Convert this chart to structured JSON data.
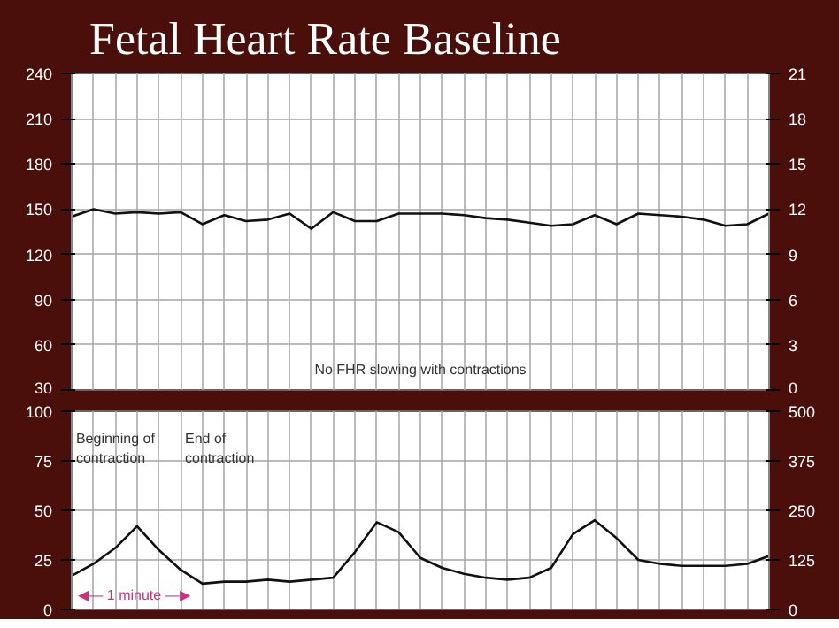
{
  "chart_data": [
    {
      "type": "line",
      "title": "Fetal Heart Rate Baseline",
      "categories": [
        null,
        null,
        null,
        null,
        null,
        null,
        null,
        null,
        null,
        null,
        null,
        null,
        null,
        null,
        null,
        null,
        null,
        null,
        null,
        null,
        null,
        null,
        null,
        null,
        null,
        null,
        null,
        null,
        null,
        null,
        null,
        null,
        null
      ],
      "series": [
        {
          "color": "#111111",
          "values": [
            145,
            150,
            147,
            148,
            147,
            148,
            140,
            146,
            142,
            143,
            147,
            137,
            148,
            142,
            142,
            147,
            147,
            147,
            146,
            144,
            143,
            141,
            139,
            140,
            146,
            140,
            147,
            146,
            145,
            143,
            139,
            140,
            147
          ]
        }
      ],
      "ylim": [
        30,
        240
      ],
      "yticks": [
        30,
        60,
        90,
        120,
        150,
        180,
        210,
        240
      ],
      "y2lim": [
        0,
        21
      ],
      "y2ticks": [
        0,
        3,
        6,
        9,
        12,
        15,
        18,
        21
      ],
      "grid": true,
      "annotations": [
        "No FHR slowing with contractions"
      ]
    },
    {
      "type": "line",
      "categories": [
        null,
        null,
        null,
        null,
        null,
        null,
        null,
        null,
        null,
        null,
        null,
        null,
        null,
        null,
        null,
        null,
        null,
        null,
        null,
        null,
        null,
        null,
        null,
        null,
        null,
        null,
        null,
        null,
        null,
        null,
        null,
        null,
        null
      ],
      "series": [
        {
          "color": "#111111",
          "values": [
            17,
            23,
            31,
            42,
            30,
            20,
            13,
            14,
            14,
            15,
            14,
            15,
            16,
            29,
            44,
            39,
            26,
            21,
            18,
            16,
            15,
            16,
            21,
            38,
            45,
            36,
            25,
            23,
            22,
            22,
            22,
            23,
            27
          ]
        }
      ],
      "ylim": [
        0,
        100
      ],
      "yticks": [
        0,
        25,
        50,
        75,
        100
      ],
      "y2lim": [
        0,
        500
      ],
      "y2ticks": [
        0,
        125,
        250,
        375,
        500
      ],
      "grid": true,
      "annotations": [
        "Beginning of contraction",
        "End of contraction",
        "◀— 1 minute —▶"
      ]
    }
  ]
}
